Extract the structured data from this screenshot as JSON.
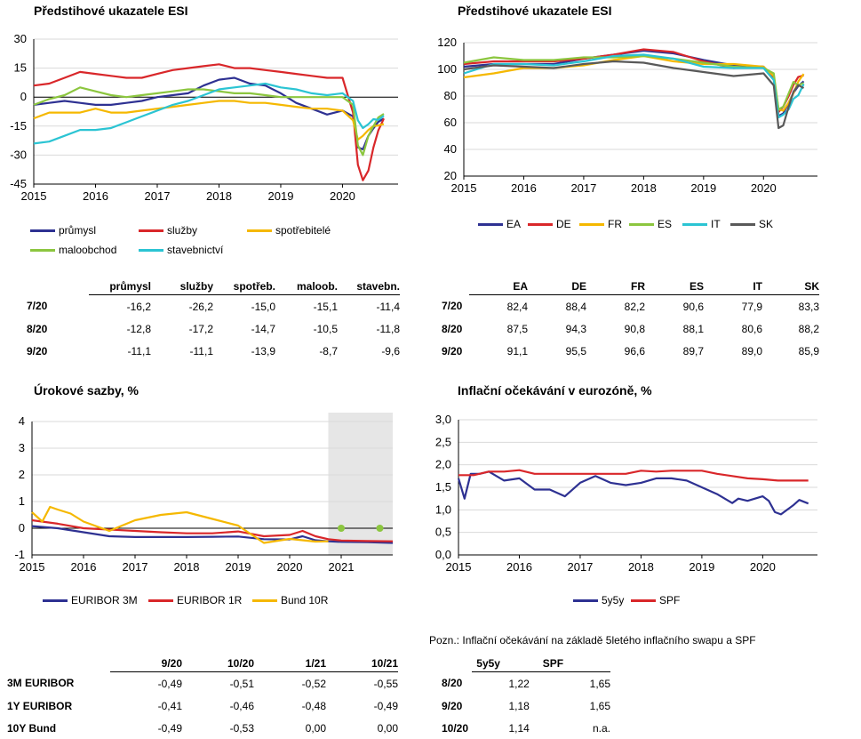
{
  "charts": {
    "esi_sector": {
      "title": "Předstihové ukazatele ESI"
    },
    "esi_country": {
      "title": "Předstihové ukazatele ESI"
    },
    "rates": {
      "title": "Úrokové sazby, %"
    },
    "inflation": {
      "title": "Inflační očekávání v eurozóně, %"
    }
  },
  "note": "Pozn.: Inflační očekávání na základě 5letého inflačního swapu a SPF",
  "tables": {
    "sector": {
      "headers": [
        "",
        "průmysl",
        "služby",
        "spotřeb.",
        "maloob.",
        "stavebn."
      ],
      "rows": [
        [
          "7/20",
          "-16,2",
          "-26,2",
          "-15,0",
          "-15,1",
          "-11,4"
        ],
        [
          "8/20",
          "-12,8",
          "-17,2",
          "-14,7",
          "-10,5",
          "-11,8"
        ],
        [
          "9/20",
          "-11,1",
          "-11,1",
          "-13,9",
          "-8,7",
          "-9,6"
        ]
      ]
    },
    "country": {
      "headers": [
        "",
        "EA",
        "DE",
        "FR",
        "ES",
        "IT",
        "SK"
      ],
      "rows": [
        [
          "7/20",
          "82,4",
          "88,4",
          "82,2",
          "90,6",
          "77,9",
          "83,3"
        ],
        [
          "8/20",
          "87,5",
          "94,3",
          "90,8",
          "88,1",
          "80,6",
          "88,2"
        ],
        [
          "9/20",
          "91,1",
          "95,5",
          "96,6",
          "89,7",
          "89,0",
          "85,9"
        ]
      ]
    },
    "rates": {
      "headers": [
        "",
        "9/20",
        "10/20",
        "1/21",
        "10/21"
      ],
      "rows": [
        [
          "3M EURIBOR",
          "-0,49",
          "-0,51",
          "-0,52",
          "-0,55"
        ],
        [
          "1Y EURIBOR",
          "-0,41",
          "-0,46",
          "-0,48",
          "-0,49"
        ],
        [
          "10Y Bund",
          "-0,49",
          "-0,53",
          "0,00",
          "0,00"
        ]
      ]
    },
    "inflation": {
      "headers": [
        "",
        "5y5y",
        "SPF"
      ],
      "rows": [
        [
          "8/20",
          "1,22",
          "1,65"
        ],
        [
          "9/20",
          "1,18",
          "1,65"
        ],
        [
          "10/20",
          "1,14",
          "n.a."
        ]
      ]
    }
  },
  "chart_data": [
    {
      "type": "line",
      "title": "Předstihové ukazatele ESI",
      "x_ticks": [
        "2015",
        "2016",
        "2017",
        "2018",
        "2019",
        "2020"
      ],
      "y_ticks": [
        "30",
        "15",
        "0",
        "-15",
        "-30",
        "-45"
      ],
      "ylim": [
        -45,
        30
      ],
      "xlim": [
        2015,
        2020.9
      ],
      "legend_position": "bottom",
      "series": [
        {
          "name": "průmysl",
          "color": "#2e3192",
          "x": [
            2015,
            2015.25,
            2015.5,
            2015.75,
            2016,
            2016.25,
            2016.5,
            2016.75,
            2017,
            2017.25,
            2017.5,
            2017.75,
            2018,
            2018.25,
            2018.5,
            2018.75,
            2019,
            2019.25,
            2019.5,
            2019.75,
            2020,
            2020.17,
            2020.25,
            2020.33,
            2020.42,
            2020.5,
            2020.58,
            2020.67
          ],
          "y": [
            -4,
            -3,
            -2,
            -3,
            -4,
            -4,
            -3,
            -2,
            0,
            1,
            2,
            6,
            9,
            10,
            7,
            6,
            2,
            -3,
            -6,
            -9,
            -7,
            -10,
            -26,
            -27,
            -20,
            -16.2,
            -12.8,
            -11.1
          ]
        },
        {
          "name": "služby",
          "color": "#d9272a",
          "x": [
            2015,
            2015.25,
            2015.5,
            2015.75,
            2016,
            2016.25,
            2016.5,
            2016.75,
            2017,
            2017.25,
            2017.5,
            2017.75,
            2018,
            2018.25,
            2018.5,
            2018.75,
            2019,
            2019.25,
            2019.5,
            2019.75,
            2020,
            2020.17,
            2020.25,
            2020.33,
            2020.42,
            2020.5,
            2020.58,
            2020.67
          ],
          "y": [
            6,
            7,
            10,
            13,
            12,
            11,
            10,
            10,
            12,
            14,
            15,
            16,
            17,
            15,
            15,
            14,
            13,
            12,
            11,
            10,
            10,
            -8,
            -35,
            -43,
            -38,
            -26.2,
            -17.2,
            -11.1
          ]
        },
        {
          "name": "spotřebitelé",
          "color": "#f5b800",
          "x": [
            2015,
            2015.25,
            2015.5,
            2015.75,
            2016,
            2016.25,
            2016.5,
            2016.75,
            2017,
            2017.25,
            2017.5,
            2017.75,
            2018,
            2018.25,
            2018.5,
            2018.75,
            2019,
            2019.25,
            2019.5,
            2019.75,
            2020,
            2020.17,
            2020.25,
            2020.33,
            2020.42,
            2020.5,
            2020.58,
            2020.67
          ],
          "y": [
            -11,
            -8,
            -8,
            -8,
            -6,
            -8,
            -8,
            -7,
            -6,
            -5,
            -4,
            -3,
            -2,
            -2,
            -3,
            -3,
            -4,
            -5,
            -6,
            -6,
            -7,
            -12,
            -22,
            -20,
            -17,
            -15.0,
            -14.7,
            -13.9
          ]
        },
        {
          "name": "maloobchod",
          "color": "#8cc63f",
          "x": [
            2015,
            2015.25,
            2015.5,
            2015.75,
            2016,
            2016.25,
            2016.5,
            2016.75,
            2017,
            2017.25,
            2017.5,
            2017.75,
            2018,
            2018.25,
            2018.5,
            2018.75,
            2019,
            2019.25,
            2019.5,
            2019.75,
            2020,
            2020.17,
            2020.25,
            2020.33,
            2020.42,
            2020.5,
            2020.58,
            2020.67
          ],
          "y": [
            -4,
            -1,
            1,
            5,
            3,
            1,
            0,
            1,
            2,
            3,
            4,
            4,
            3,
            2,
            2,
            1,
            0,
            0,
            0,
            0,
            0,
            -4,
            -25,
            -30,
            -20,
            -15.1,
            -10.5,
            -8.7
          ]
        },
        {
          "name": "stavebnictví",
          "color": "#2bc4d3",
          "x": [
            2015,
            2015.25,
            2015.5,
            2015.75,
            2016,
            2016.25,
            2016.5,
            2016.75,
            2017,
            2017.25,
            2017.5,
            2017.75,
            2018,
            2018.25,
            2018.5,
            2018.75,
            2019,
            2019.25,
            2019.5,
            2019.75,
            2020,
            2020.17,
            2020.25,
            2020.33,
            2020.42,
            2020.5,
            2020.58,
            2020.67
          ],
          "y": [
            -24,
            -23,
            -20,
            -17,
            -17,
            -16,
            -13,
            -10,
            -7,
            -4,
            -2,
            1,
            4,
            5,
            6,
            7,
            5,
            4,
            2,
            1,
            2,
            -2,
            -12,
            -16,
            -14,
            -11.4,
            -11.8,
            -9.6
          ]
        }
      ]
    },
    {
      "type": "line",
      "title": "Předstihové ukazatele ESI",
      "x_ticks": [
        "2015",
        "2016",
        "2017",
        "2018",
        "2019",
        "2020"
      ],
      "y_ticks": [
        "120",
        "100",
        "80",
        "60",
        "40",
        "20"
      ],
      "ylim": [
        20,
        120
      ],
      "xlim": [
        2015,
        2020.9
      ],
      "legend_position": "bottom",
      "series": [
        {
          "name": "EA",
          "color": "#2e3192",
          "x": [
            2015,
            2015.5,
            2016,
            2016.5,
            2017,
            2017.5,
            2018,
            2018.5,
            2019,
            2019.5,
            2020,
            2020.17,
            2020.25,
            2020.33,
            2020.42,
            2020.5,
            2020.58,
            2020.67
          ],
          "y": [
            102,
            104,
            104,
            104,
            108,
            111,
            114,
            112,
            107,
            103,
            102,
            94,
            65,
            67,
            75,
            82.4,
            87.5,
            91.1
          ]
        },
        {
          "name": "DE",
          "color": "#d9272a",
          "x": [
            2015,
            2015.5,
            2016,
            2016.5,
            2017,
            2017.5,
            2018,
            2018.5,
            2019,
            2019.5,
            2020,
            2020.17,
            2020.25,
            2020.33,
            2020.42,
            2020.5,
            2020.58,
            2020.67
          ],
          "y": [
            104,
            106,
            106,
            106,
            108,
            111,
            115,
            113,
            106,
            101,
            102,
            93,
            68,
            72,
            80,
            88.4,
            94.3,
            95.5
          ]
        },
        {
          "name": "FR",
          "color": "#f5b800",
          "x": [
            2015,
            2015.5,
            2016,
            2016.5,
            2017,
            2017.5,
            2018,
            2018.5,
            2019,
            2019.5,
            2020,
            2020.17,
            2020.25,
            2020.33,
            2020.42,
            2020.5,
            2020.58,
            2020.67
          ],
          "y": [
            94,
            97,
            101,
            101,
            103,
            107,
            110,
            106,
            104,
            104,
            102,
            95,
            70,
            69,
            75,
            82.2,
            90.8,
            96.6
          ]
        },
        {
          "name": "ES",
          "color": "#8cc63f",
          "x": [
            2015,
            2015.5,
            2016,
            2016.5,
            2017,
            2017.5,
            2018,
            2018.5,
            2019,
            2019.5,
            2020,
            2020.17,
            2020.25,
            2020.33,
            2020.42,
            2020.5,
            2020.58,
            2020.67
          ],
          "y": [
            105,
            109,
            107,
            107,
            109,
            109,
            110,
            108,
            105,
            102,
            101,
            97,
            70,
            72,
            82,
            90.6,
            88.1,
            89.7
          ]
        },
        {
          "name": "IT",
          "color": "#2bc4d3",
          "x": [
            2015,
            2015.5,
            2016,
            2016.5,
            2017,
            2017.5,
            2018,
            2018.5,
            2019,
            2019.5,
            2020,
            2020.17,
            2020.25,
            2020.33,
            2020.42,
            2020.5,
            2020.58,
            2020.67
          ],
          "y": [
            97,
            104,
            104,
            103,
            106,
            110,
            111,
            108,
            102,
            101,
            101,
            92,
            64,
            66,
            70,
            77.9,
            80.6,
            89.0
          ]
        },
        {
          "name": "SK",
          "color": "#595959",
          "x": [
            2015,
            2015.5,
            2016,
            2016.5,
            2017,
            2017.5,
            2018,
            2018.5,
            2019,
            2019.5,
            2020,
            2020.17,
            2020.25,
            2020.33,
            2020.42,
            2020.5,
            2020.58,
            2020.67
          ],
          "y": [
            100,
            103,
            102,
            101,
            104,
            106,
            105,
            101,
            98,
            95,
            97,
            88,
            56,
            58,
            72,
            83.3,
            88.2,
            85.9
          ]
        }
      ]
    },
    {
      "type": "line",
      "title": "Úrokové sazby, %",
      "x_ticks": [
        "2015",
        "2016",
        "2017",
        "2018",
        "2019",
        "2020",
        "2021"
      ],
      "y_ticks": [
        "4",
        "3",
        "2",
        "1",
        "0",
        "-1"
      ],
      "ylim": [
        -1,
        4
      ],
      "xlim": [
        2015,
        2022
      ],
      "forecast_region": [
        2020.75,
        2022
      ],
      "legend_position": "bottom",
      "series": [
        {
          "name": "EURIBOR 3M",
          "color": "#2e3192",
          "x": [
            2015,
            2015.5,
            2016,
            2016.5,
            2017,
            2017.5,
            2018,
            2018.5,
            2019,
            2019.5,
            2020,
            2020.25,
            2020.5,
            2020.75,
            2021,
            2021.5,
            2022
          ],
          "y": [
            0.08,
            0.0,
            -0.15,
            -0.3,
            -0.33,
            -0.33,
            -0.33,
            -0.32,
            -0.31,
            -0.41,
            -0.42,
            -0.3,
            -0.45,
            -0.49,
            -0.51,
            -0.52,
            -0.55
          ]
        },
        {
          "name": "EURIBOR 1R",
          "color": "#d9272a",
          "x": [
            2015,
            2015.5,
            2016,
            2016.5,
            2017,
            2017.5,
            2018,
            2018.5,
            2019,
            2019.5,
            2020,
            2020.25,
            2020.5,
            2020.75,
            2021,
            2021.5,
            2022
          ],
          "y": [
            0.3,
            0.17,
            0.0,
            -0.05,
            -0.1,
            -0.15,
            -0.19,
            -0.19,
            -0.12,
            -0.3,
            -0.25,
            -0.1,
            -0.3,
            -0.41,
            -0.46,
            -0.48,
            -0.49
          ]
        },
        {
          "name": "Bund 10R",
          "color": "#f5b800",
          "x": [
            2015,
            2015.2,
            2015.35,
            2015.5,
            2015.75,
            2016,
            2016.5,
            2017,
            2017.5,
            2018,
            2018.5,
            2019,
            2019.5,
            2020,
            2020.25,
            2020.5,
            2020.75
          ],
          "y": [
            0.6,
            0.25,
            0.8,
            0.7,
            0.55,
            0.25,
            -0.1,
            0.3,
            0.5,
            0.6,
            0.35,
            0.1,
            -0.55,
            -0.4,
            -0.45,
            -0.5,
            -0.49
          ]
        }
      ],
      "markers": [
        {
          "x": 2021,
          "y": 0.0,
          "color": "#8cc63f"
        },
        {
          "x": 2021.75,
          "y": 0.0,
          "color": "#8cc63f"
        }
      ]
    },
    {
      "type": "line",
      "title": "Inflační očekávání v eurozóně, %",
      "x_ticks": [
        "2015",
        "2016",
        "2017",
        "2018",
        "2019",
        "2020"
      ],
      "y_ticks": [
        "3,0",
        "2,5",
        "2,0",
        "1,5",
        "1,0",
        "0,5",
        "0,0"
      ],
      "ylim": [
        0,
        3.0
      ],
      "xlim": [
        2015,
        2020.9
      ],
      "legend_position": "bottom",
      "series": [
        {
          "name": "5y5y",
          "color": "#2e3192",
          "x": [
            2015,
            2015.1,
            2015.2,
            2015.35,
            2015.5,
            2015.75,
            2016,
            2016.25,
            2016.5,
            2016.75,
            2017,
            2017.25,
            2017.5,
            2017.75,
            2018,
            2018.25,
            2018.5,
            2018.75,
            2019,
            2019.25,
            2019.5,
            2019.6,
            2019.75,
            2020,
            2020.1,
            2020.2,
            2020.3,
            2020.4,
            2020.5,
            2020.6,
            2020.75
          ],
          "y": [
            1.7,
            1.25,
            1.8,
            1.8,
            1.85,
            1.65,
            1.7,
            1.45,
            1.45,
            1.3,
            1.6,
            1.75,
            1.6,
            1.55,
            1.6,
            1.7,
            1.7,
            1.65,
            1.5,
            1.35,
            1.15,
            1.25,
            1.2,
            1.3,
            1.2,
            0.95,
            0.9,
            1.0,
            1.1,
            1.22,
            1.14
          ]
        },
        {
          "name": "SPF",
          "color": "#d9272a",
          "x": [
            2015,
            2015.25,
            2015.5,
            2015.75,
            2016,
            2016.25,
            2016.5,
            2016.75,
            2017,
            2017.25,
            2017.5,
            2017.75,
            2018,
            2018.25,
            2018.5,
            2018.75,
            2019,
            2019.25,
            2019.5,
            2019.75,
            2020,
            2020.25,
            2020.5,
            2020.75
          ],
          "y": [
            1.77,
            1.77,
            1.85,
            1.85,
            1.88,
            1.8,
            1.8,
            1.8,
            1.8,
            1.8,
            1.8,
            1.8,
            1.87,
            1.85,
            1.87,
            1.87,
            1.87,
            1.8,
            1.75,
            1.7,
            1.68,
            1.65,
            1.65,
            1.65
          ]
        }
      ]
    }
  ]
}
